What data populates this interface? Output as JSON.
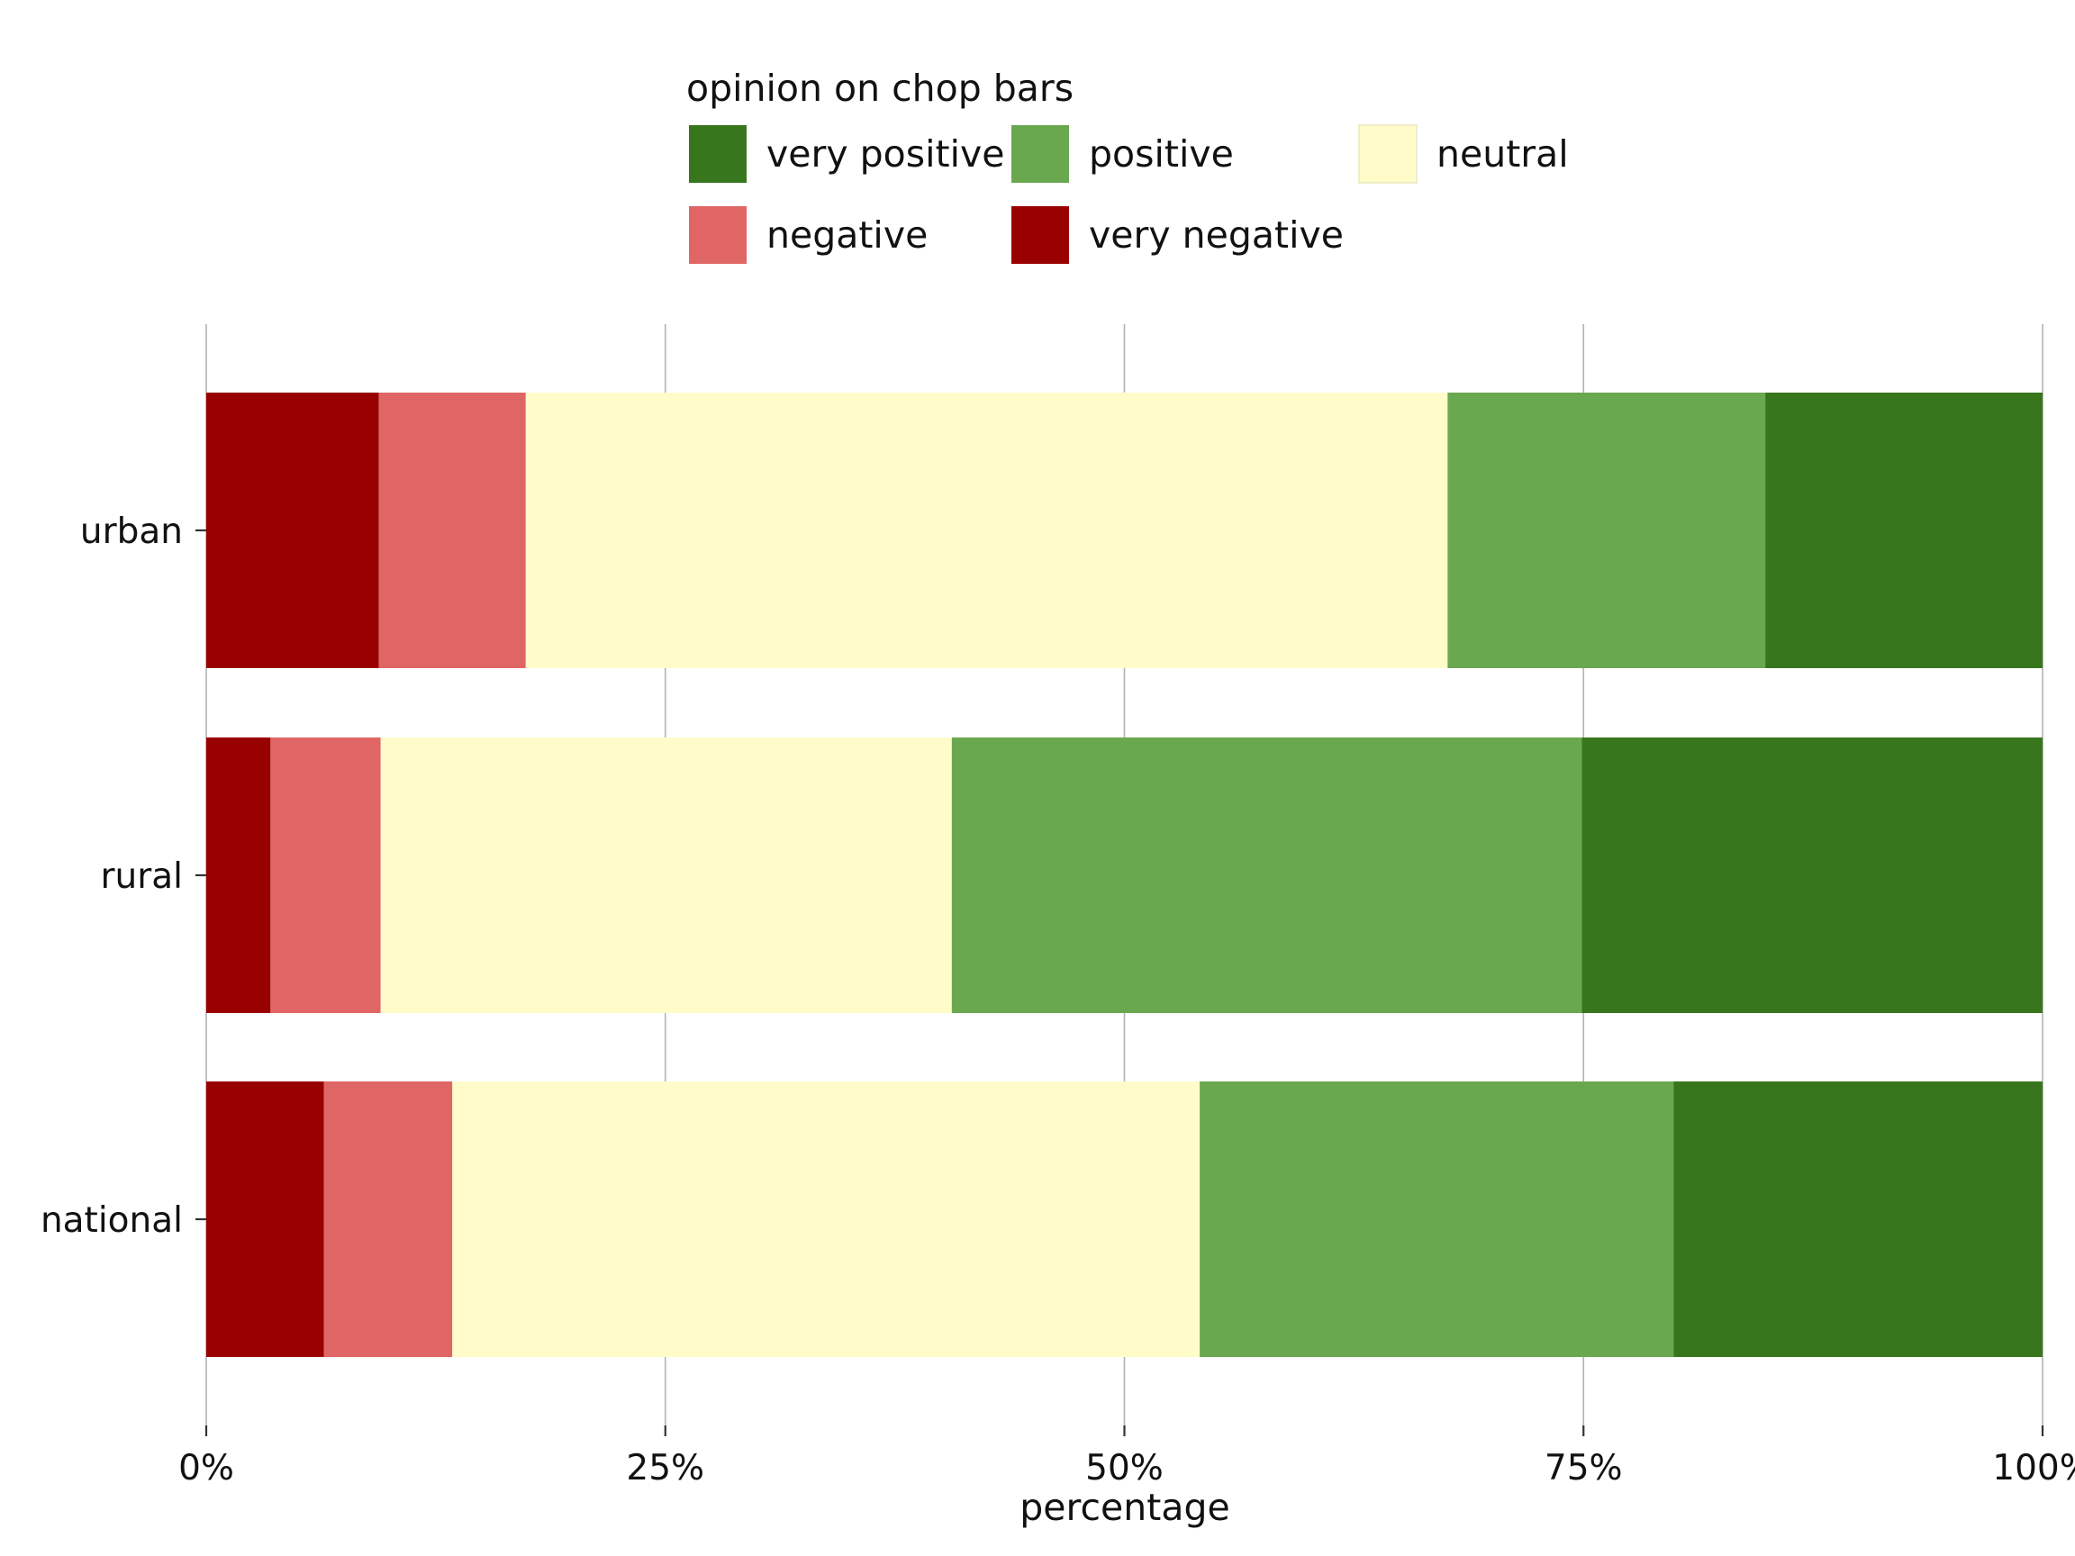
{
  "chart_data": {
    "type": "bar",
    "orientation": "horizontal",
    "stacked": true,
    "percent": true,
    "title": "",
    "xlabel": "percentage",
    "ylabel": "",
    "xlim": [
      0,
      100
    ],
    "x_ticks": [
      0,
      25,
      50,
      75,
      100
    ],
    "x_tick_labels": [
      "0%",
      "25%",
      "50%",
      "75%",
      "100%"
    ],
    "grid": "vertical major",
    "legend_title": "opinion on chop bars",
    "legend_position": "top",
    "categories": [
      "urban",
      "rural",
      "national"
    ],
    "series": [
      {
        "name": "very negative",
        "color": "#990000",
        "values": [
          9.4,
          3.5,
          6.4
        ]
      },
      {
        "name": "negative",
        "color": "#E06666",
        "values": [
          8.0,
          6.0,
          7.0
        ]
      },
      {
        "name": "neutral",
        "color": "#FFFCCA",
        "values": [
          50.2,
          31.1,
          40.7
        ]
      },
      {
        "name": "positive",
        "color": "#6AA84F",
        "values": [
          17.3,
          34.3,
          25.8
        ]
      },
      {
        "name": "very positive",
        "color": "#38761D",
        "values": [
          15.1,
          25.1,
          20.1
        ]
      }
    ],
    "legend_order": [
      "very positive",
      "positive",
      "neutral",
      "negative",
      "very negative"
    ]
  }
}
